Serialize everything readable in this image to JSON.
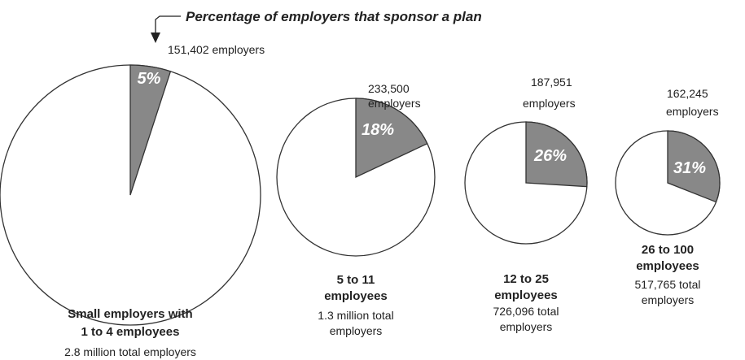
{
  "chart_data": {
    "type": "pie",
    "title": "Percentage of employers that sponsor a plan",
    "colors": {
      "sponsor_slice": "#888888",
      "remainder": "#ffffff",
      "outline": "#333333"
    },
    "pies": [
      {
        "group_line1": "Small employers with",
        "group_line2": "1 to 4 employees",
        "total_line1": "2.8 million total employers",
        "total_line2": "",
        "sponsor_percent": 5,
        "sponsor_label": "5%",
        "sponsor_count_line1": "151,402 employers",
        "sponsor_count_line2": ""
      },
      {
        "group_line1": "5 to 11",
        "group_line2": "employees",
        "total_line1": "1.3 million total",
        "total_line2": "employers",
        "sponsor_percent": 18,
        "sponsor_label": "18%",
        "sponsor_count_line1": "233,500",
        "sponsor_count_line2": "employers"
      },
      {
        "group_line1": "12 to 25",
        "group_line2": "employees",
        "total_line1": "726,096 total",
        "total_line2": "employers",
        "sponsor_percent": 26,
        "sponsor_label": "26%",
        "sponsor_count_line1": "187,951",
        "sponsor_count_line2": "employers"
      },
      {
        "group_line1": "26 to 100",
        "group_line2": "employees",
        "total_line1": "517,765 total",
        "total_line2": "employers",
        "sponsor_percent": 31,
        "sponsor_label": "31%",
        "sponsor_count_line1": "162,245",
        "sponsor_count_line2": "employers"
      }
    ]
  }
}
